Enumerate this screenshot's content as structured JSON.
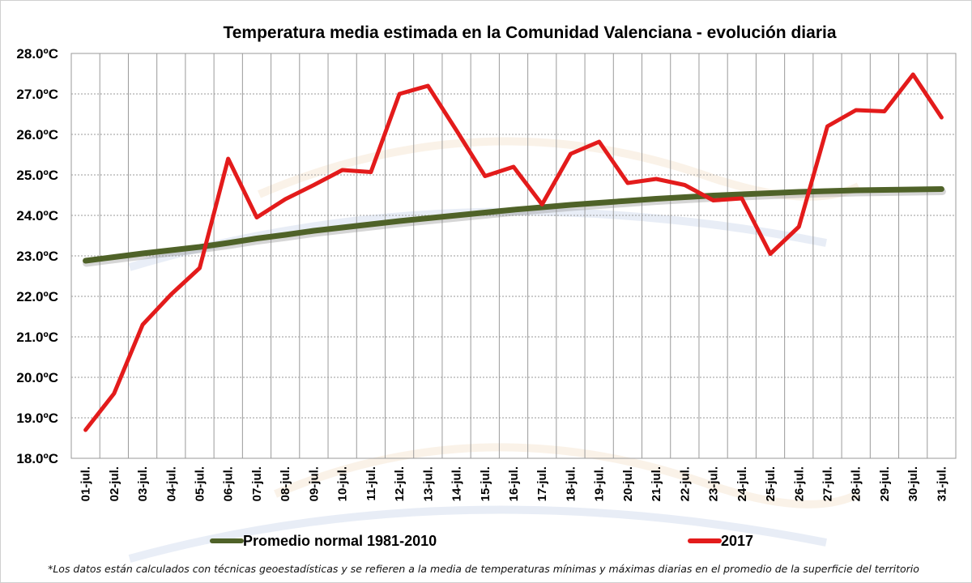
{
  "chart_data": {
    "type": "line",
    "title": "Temperatura media estimada en la Comunidad Valenciana - evolución diaria",
    "x": [
      "01-jul.",
      "02-jul.",
      "03-jul.",
      "04-jul.",
      "05-jul.",
      "06-jul.",
      "07-jul.",
      "08-jul.",
      "09-jul.",
      "10-jul.",
      "11-jul.",
      "12-jul.",
      "13-jul.",
      "14-jul.",
      "15-jul.",
      "16-jul.",
      "17-jul.",
      "18-jul.",
      "19-jul.",
      "20-jul.",
      "21-jul.",
      "22-jul.",
      "23-jul.",
      "24-jul.",
      "25-jul.",
      "26-jul.",
      "27-jul.",
      "28-jul.",
      "29-jul.",
      "30-jul.",
      "31-jul."
    ],
    "y_ticks": [
      "18.0ºC",
      "19.0ºC",
      "20.0ºC",
      "21.0ºC",
      "22.0ºC",
      "23.0ºC",
      "24.0ºC",
      "25.0ºC",
      "26.0ºC",
      "27.0ºC",
      "28.0ºC"
    ],
    "ylim": [
      18,
      28
    ],
    "grid": true,
    "legend_position": "bottom",
    "series": [
      {
        "name": "Promedio normal 1981-2010",
        "color": "#4f6228",
        "values": [
          22.88,
          22.97,
          23.06,
          23.14,
          23.22,
          23.32,
          23.43,
          23.52,
          23.62,
          23.7,
          23.78,
          23.86,
          23.93,
          24.0,
          24.07,
          24.14,
          24.2,
          24.26,
          24.31,
          24.36,
          24.41,
          24.45,
          24.49,
          24.52,
          24.55,
          24.58,
          24.6,
          24.62,
          24.63,
          24.64,
          24.65
        ]
      },
      {
        "name": "2017",
        "color": "#e31b1b",
        "values": [
          18.7,
          19.6,
          21.3,
          22.05,
          22.7,
          25.4,
          23.95,
          24.4,
          24.75,
          25.12,
          25.07,
          27.0,
          27.2,
          26.1,
          24.97,
          25.2,
          24.27,
          25.52,
          25.82,
          24.8,
          24.9,
          24.75,
          24.37,
          24.42,
          23.05,
          23.72,
          26.2,
          26.6,
          26.57,
          27.48,
          26.42
        ]
      }
    ],
    "footnote": "*Los datos están calculados con técnicas geoestadísticas y se refieren a la media de temperaturas mínimas y máximas diarias en el promedio de la superficie del territorio"
  }
}
